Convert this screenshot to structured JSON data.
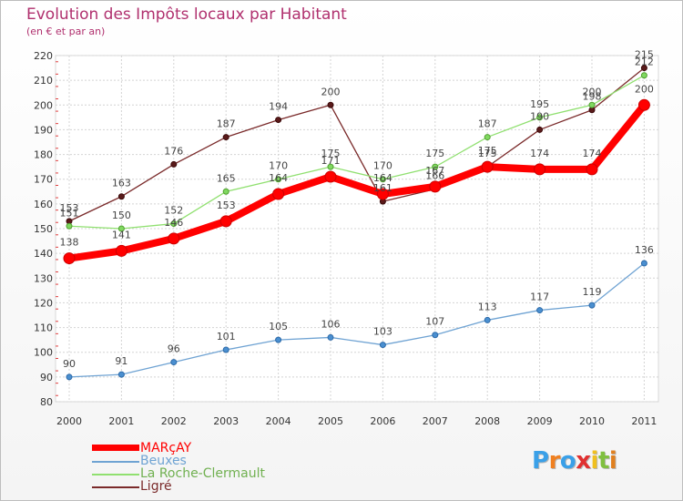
{
  "chart_data": {
    "type": "line",
    "title": "Evolution des Impôts locaux par Habitant",
    "subtitle": "(en € et par an)",
    "xlabel": "",
    "ylabel": "",
    "categories": [
      "2000",
      "2001",
      "2002",
      "2003",
      "2004",
      "2005",
      "2006",
      "2007",
      "2008",
      "2009",
      "2010",
      "2011"
    ],
    "ylim": [
      80,
      220
    ],
    "yticks": [
      80,
      90,
      100,
      110,
      120,
      130,
      140,
      150,
      160,
      170,
      180,
      190,
      200,
      210,
      220
    ],
    "grid": true,
    "legend_position": "bottom-left",
    "series": [
      {
        "name": "MARçAY",
        "color": "#ff0000",
        "values": [
          138,
          141,
          146,
          153,
          164,
          171,
          164,
          167,
          175,
          174,
          174,
          200
        ]
      },
      {
        "name": "Beuxes",
        "color": "#6fa3d3",
        "values": [
          90,
          91,
          96,
          101,
          105,
          106,
          103,
          107,
          113,
          117,
          119,
          136
        ]
      },
      {
        "name": "La Roche-Clermault",
        "color": "#90e070",
        "values": [
          151,
          150,
          152,
          165,
          170,
          175,
          170,
          175,
          187,
          195,
          200,
          212
        ]
      },
      {
        "name": "Ligré",
        "color": "#7a2a2a",
        "values": [
          153,
          163,
          176,
          187,
          194,
          200,
          161,
          166,
          175,
          190,
          198,
          215
        ]
      }
    ]
  },
  "logo": {
    "letters": [
      "P",
      "r",
      "o",
      "x",
      "i",
      "t",
      "i"
    ],
    "colors": [
      "#3aa0e8",
      "#f08020",
      "#3aa0e8",
      "#e03030",
      "#f0c020",
      "#80c040",
      "#e08020"
    ]
  }
}
